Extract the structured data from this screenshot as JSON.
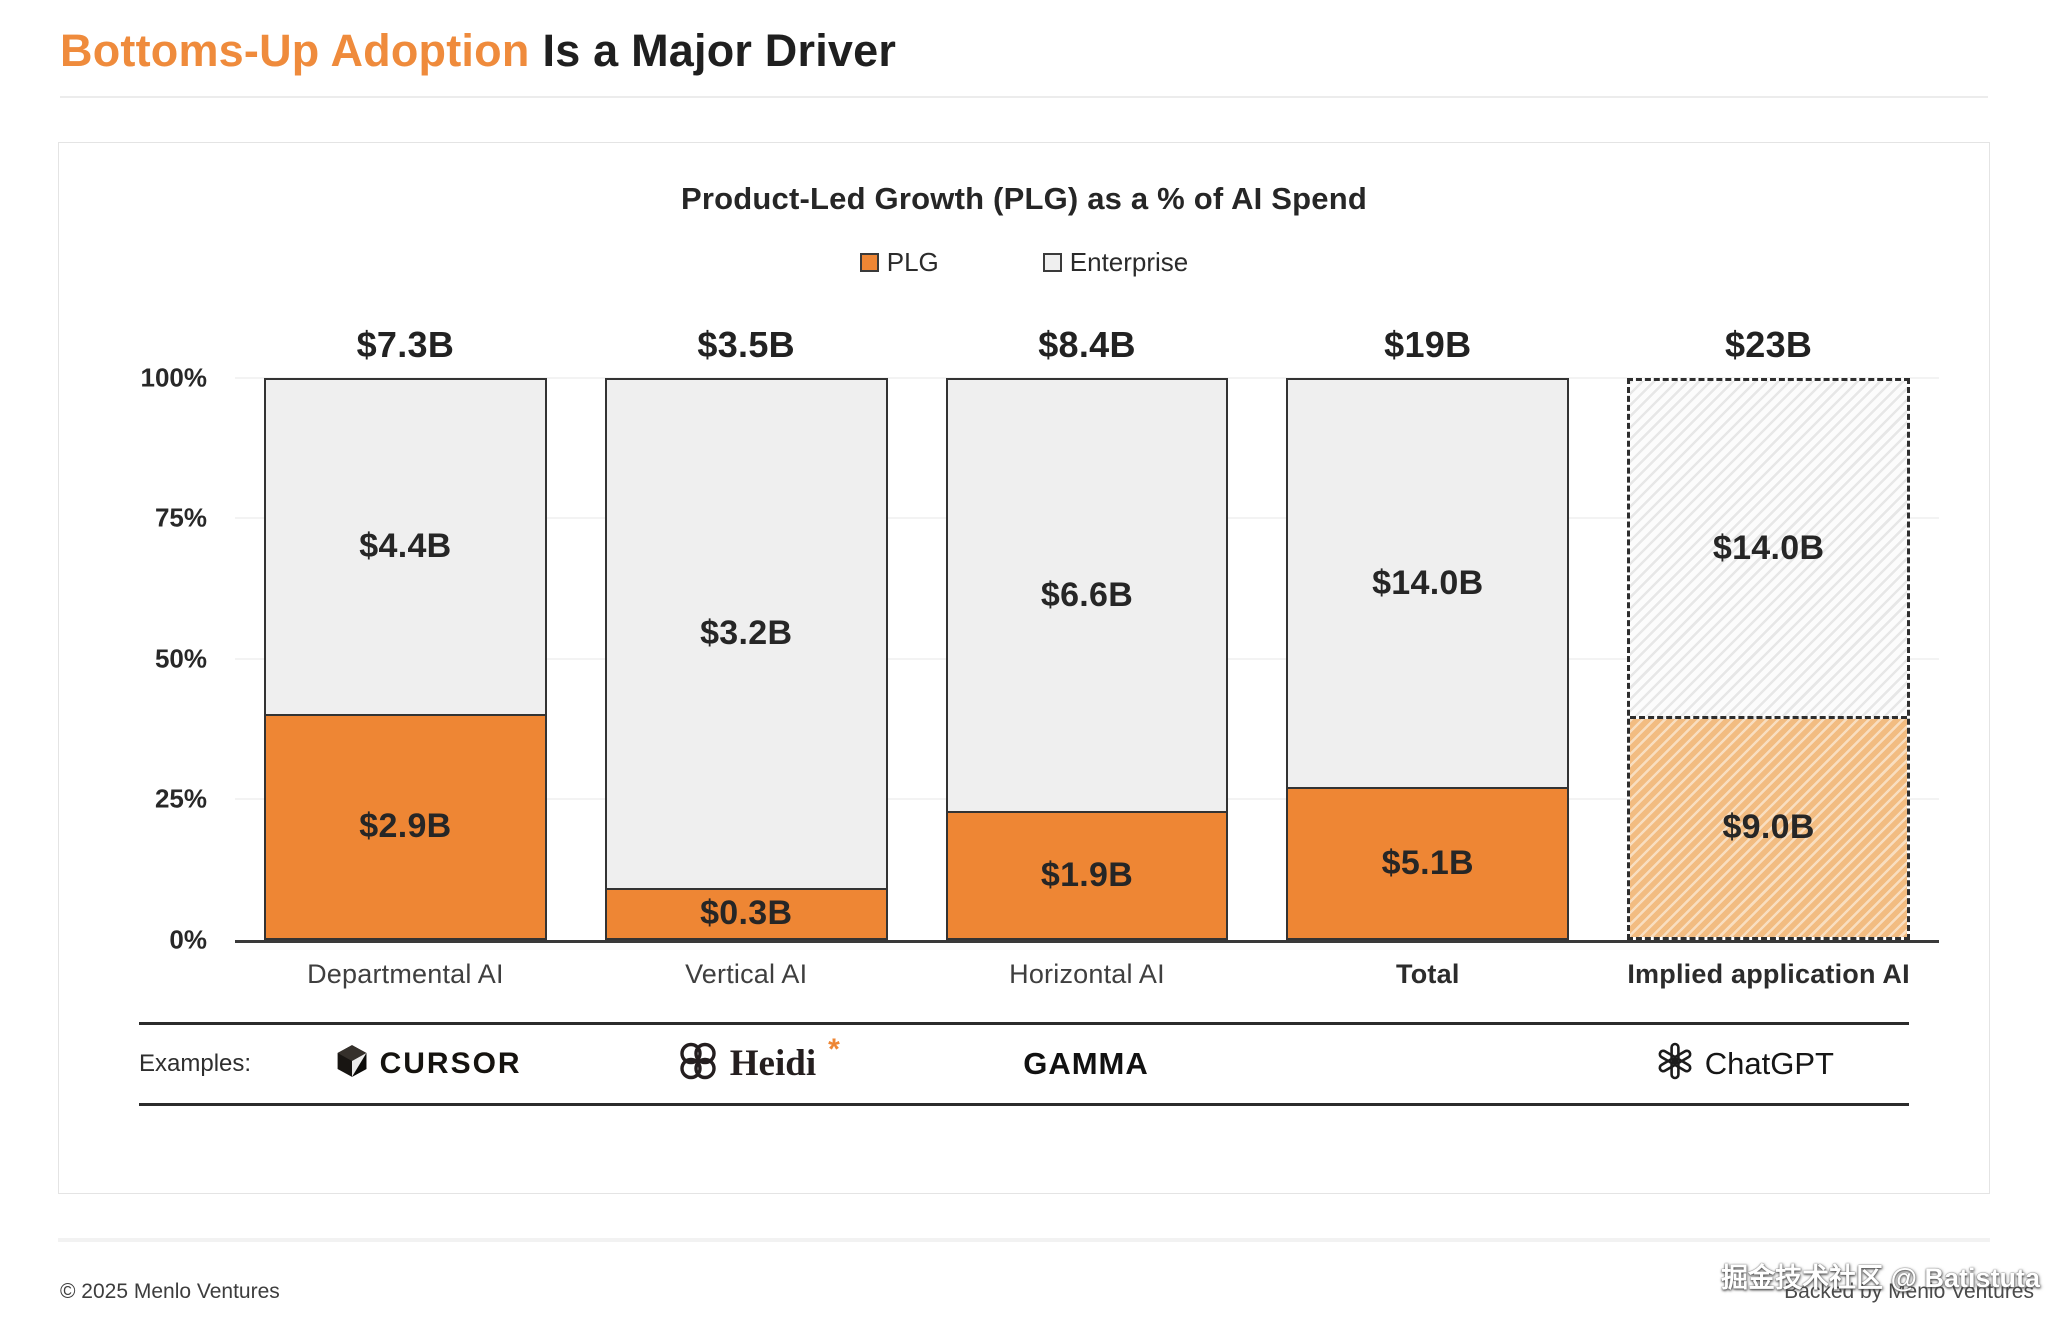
{
  "page": {
    "title_accent": "Bottoms-Up Adoption",
    "title_rest": "Is a Major Driver",
    "footer_left": "© 2025 Menlo Ventures",
    "footer_right": "Backed by Menlo Ventures",
    "watermark": "掘金技术社区 @ Batistuta"
  },
  "chart_data": {
    "type": "bar",
    "stacked": true,
    "normalized": "percent",
    "title": "Product-Led Growth (PLG) as a % of AI Spend",
    "categories": [
      "Departmental AI",
      "Vertical AI",
      "Horizontal AI",
      "Total",
      "Implied application AI"
    ],
    "totals_labels": [
      "$7.3B",
      "$3.5B",
      "$8.4B",
      "$19B",
      "$23B"
    ],
    "series": [
      {
        "name": "PLG",
        "color": "#EE8634",
        "values": [
          2.9,
          0.3,
          1.9,
          5.1,
          9.0
        ],
        "labels": [
          "$2.9B",
          "$0.3B",
          "$1.9B",
          "$5.1B",
          "$9.0B"
        ]
      },
      {
        "name": "Enterprise",
        "color": "#EFEFEF",
        "values": [
          4.4,
          3.2,
          6.6,
          14.0,
          14.0
        ],
        "labels": [
          "$4.4B",
          "$3.2B",
          "$6.6B",
          "$14.0B",
          "$14.0B"
        ]
      }
    ],
    "y_ticks": [
      "0%",
      "25%",
      "50%",
      "75%",
      "100%"
    ],
    "ylim": [
      0,
      100
    ],
    "legend_position": "top",
    "grid": true,
    "hatched_category_index": 4,
    "bold_category_indices": [
      3,
      4
    ]
  },
  "examples": {
    "label": "Examples:",
    "items": [
      {
        "name": "Cursor",
        "text": "CURSOR"
      },
      {
        "name": "Heidi",
        "text": "Heidi",
        "asterisk": "*"
      },
      {
        "name": "Gamma",
        "text": "GAMMA"
      },
      {
        "name": "ChatGPT",
        "text": "ChatGPT"
      }
    ]
  }
}
